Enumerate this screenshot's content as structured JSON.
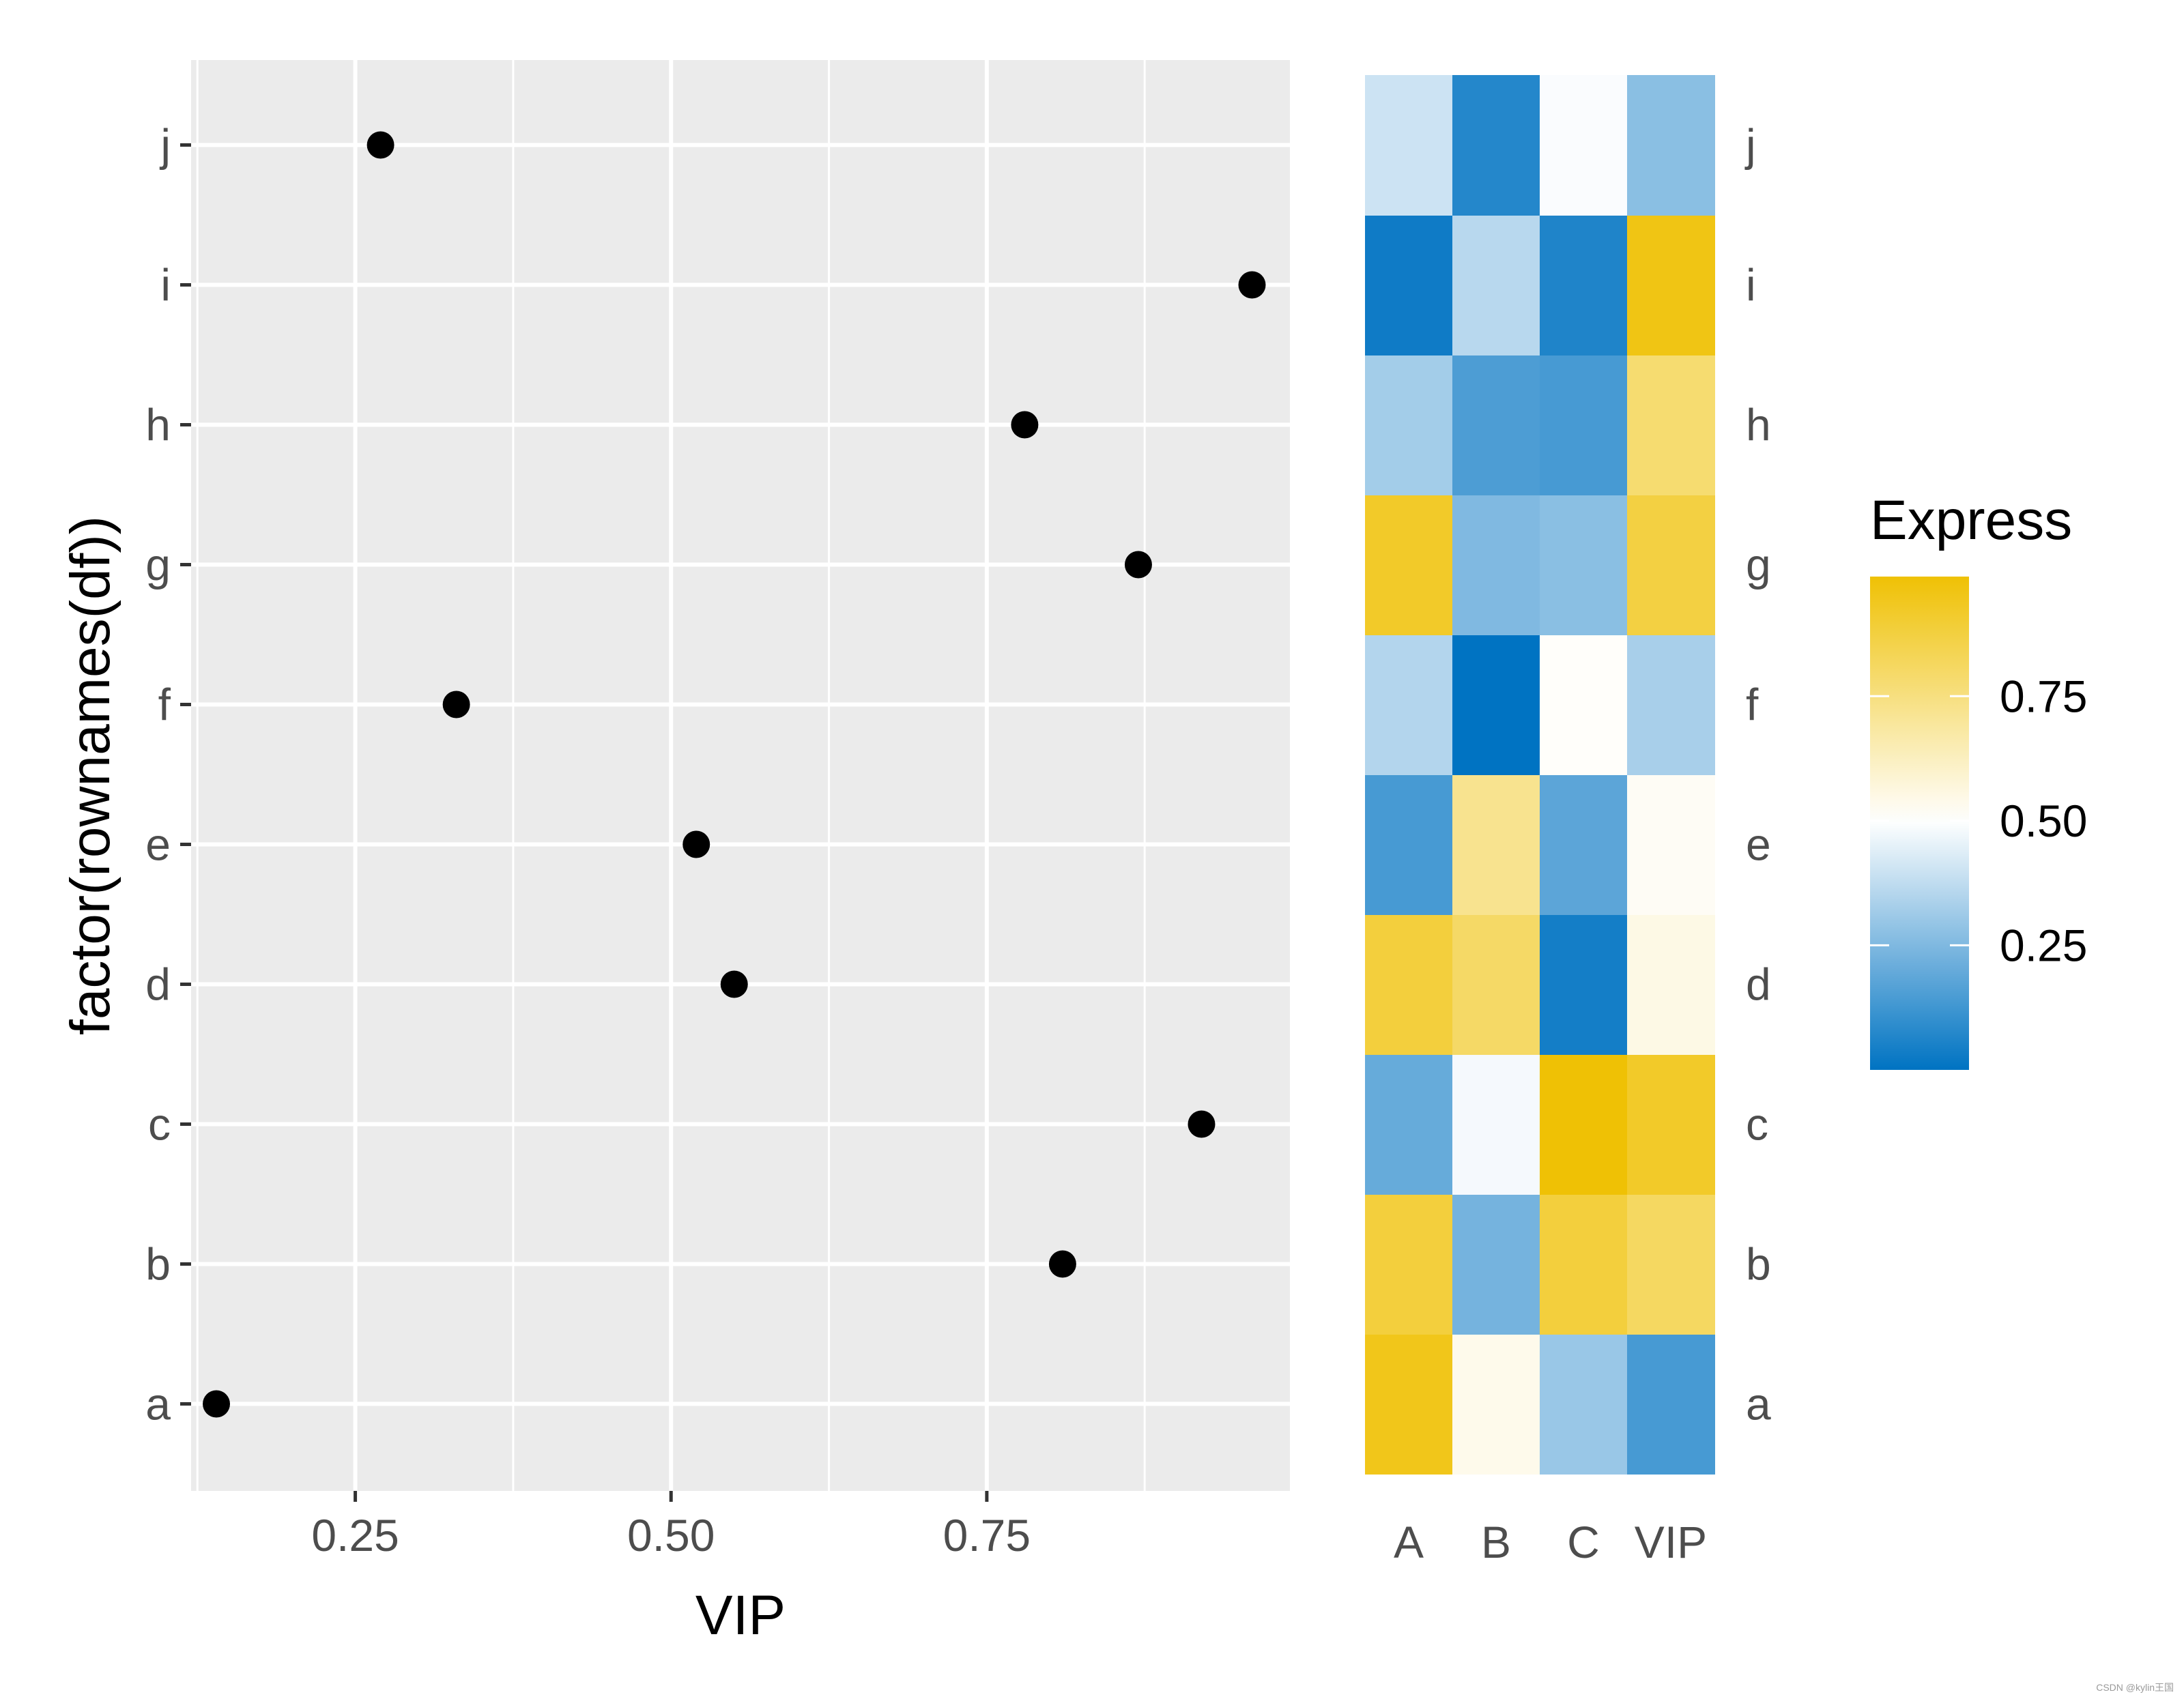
{
  "chart_data": [
    {
      "type": "scatter",
      "x_values": [
        0.14,
        0.81,
        0.92,
        0.55,
        0.52,
        0.33,
        0.87,
        0.78,
        0.96,
        0.27
      ],
      "categories": [
        "a",
        "b",
        "c",
        "d",
        "e",
        "f",
        "g",
        "h",
        "i",
        "j"
      ],
      "xlabel": "VIP",
      "ylabel": "factor(rownames(df))",
      "x_ticks": [
        "0.25",
        "0.50",
        "0.75"
      ],
      "xlim": [
        0.12,
        0.99
      ],
      "grid": true
    },
    {
      "type": "heatmap",
      "columns": [
        "A",
        "B",
        "C",
        "VIP"
      ],
      "rows": [
        "a",
        "b",
        "c",
        "d",
        "e",
        "f",
        "g",
        "h",
        "i",
        "j"
      ],
      "values": [
        [
          0.95,
          0.54,
          0.3,
          0.14
        ],
        [
          0.88,
          0.23,
          0.88,
          0.81
        ],
        [
          0.2,
          0.48,
          0.99,
          0.92
        ],
        [
          0.88,
          0.8,
          0.04,
          0.55
        ],
        [
          0.14,
          0.72,
          0.18,
          0.52
        ],
        [
          0.35,
          0.0,
          0.51,
          0.33
        ],
        [
          0.92,
          0.25,
          0.27,
          0.87
        ],
        [
          0.32,
          0.15,
          0.14,
          0.78
        ],
        [
          0.03,
          0.36,
          0.06,
          0.96
        ],
        [
          0.4,
          0.07,
          0.49,
          0.27
        ]
      ],
      "colors": {
        "low": "#0073C2",
        "mid": "#FFFFFF",
        "high": "#EFC000"
      },
      "legend_title": "Express",
      "legend_ticks": [
        0.25,
        0.5,
        0.75
      ],
      "legend_tick_labels": [
        "0.25",
        "0.50",
        "0.75"
      ],
      "legend_range": [
        0.0,
        0.99
      ],
      "legend_placement": "right"
    }
  ],
  "style": {
    "panel_background": "#EBEBEB",
    "grid_color": "#FFFFFF",
    "point_color": "#000000"
  },
  "watermark": "CSDN @kylin王国"
}
